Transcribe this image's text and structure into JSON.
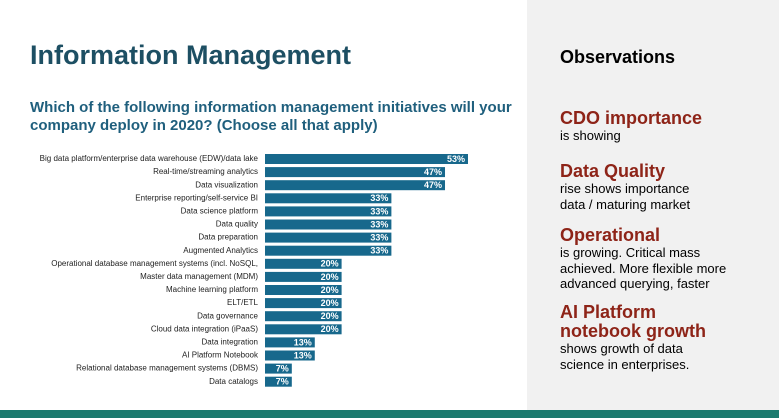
{
  "chart_data": {
    "type": "bar",
    "orientation": "horizontal",
    "title": "Information Management",
    "subtitle": [
      "Which of the following information management initiatives will your",
      "company deploy in 2020? (Choose all that apply)"
    ],
    "color": "#17688c",
    "categories": [
      "Big data platform/enterprise data warehouse (EDW)/data lake",
      "Real-time/streaming analytics",
      "Data visualization",
      "Enterprise reporting/self-service BI",
      "Data science platform",
      "Data quality",
      "Data preparation",
      "Augmented Analytics",
      "Operational database management systems (incl. NoSQL,",
      "Master data management (MDM)",
      "Machine learning platform",
      "ELT/ETL",
      "Data governance",
      "Cloud data integration (iPaaS)",
      "Data integration",
      "AI Platform Notebook",
      "Relational database management systems (DBMS)",
      "Data catalogs"
    ],
    "values": [
      53,
      47,
      47,
      33,
      33,
      33,
      33,
      33,
      20,
      20,
      20,
      20,
      20,
      20,
      13,
      13,
      7,
      7
    ],
    "value_labels": [
      "53%",
      "47%",
      "47%",
      "33%",
      "33%",
      "33%",
      "33%",
      "33%",
      "20%",
      "20%",
      "20%",
      "20%",
      "20%",
      "20%",
      "13%",
      "13%",
      "7%",
      "7%"
    ]
  },
  "observations": {
    "title": "Observations",
    "items": [
      {
        "heading": [
          "CDO importance"
        ],
        "text": [
          "is showing"
        ]
      },
      {
        "heading": [
          "Data Quality"
        ],
        "text": [
          "rise shows importance",
          "data / maturing market"
        ]
      },
      {
        "heading": [
          "Operational"
        ],
        "text": [
          "is growing. Critical mass",
          "achieved. More flexible more",
          "advanced querying, faster"
        ]
      },
      {
        "heading": [
          "AI Platform",
          "notebook growth"
        ],
        "text": [
          "shows growth of data",
          "science in enterprises."
        ]
      }
    ]
  }
}
